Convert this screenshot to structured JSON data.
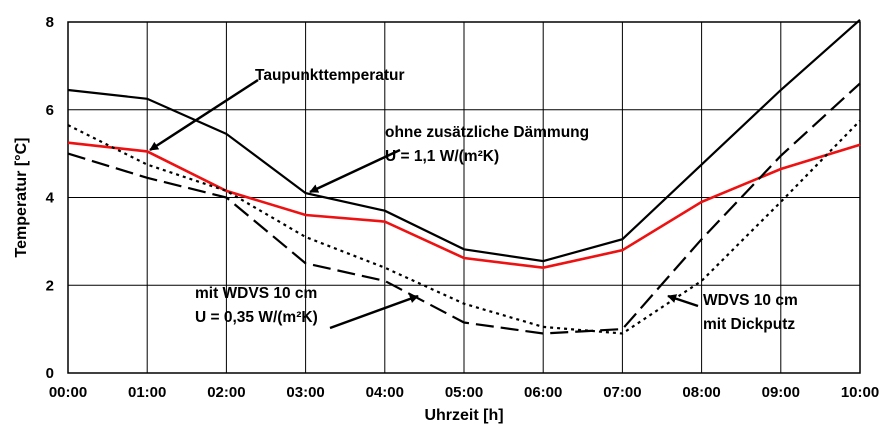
{
  "chart_data": {
    "type": "line",
    "xlabel": "Uhrzeit [h]",
    "ylabel": "Temperatur [°C]",
    "ylim": [
      0,
      8
    ],
    "yticks": [
      0,
      2,
      4,
      6,
      8
    ],
    "categories": [
      "00:00",
      "01:00",
      "02:00",
      "03:00",
      "04:00",
      "05:00",
      "06:00",
      "07:00",
      "08:00",
      "09:00",
      "10:00"
    ],
    "grid": true,
    "series": [
      {
        "name": "Taupunkttemperatur",
        "color": "#ee1111",
        "dash": "solid",
        "values": [
          5.25,
          5.05,
          4.15,
          3.6,
          3.45,
          2.62,
          2.4,
          2.8,
          3.9,
          4.65,
          5.2
        ]
      },
      {
        "name": "ohne zusätzliche Dämmung",
        "color": "#000000",
        "dash": "solid",
        "values": [
          6.45,
          6.25,
          5.45,
          4.1,
          3.7,
          2.82,
          2.55,
          3.05,
          4.75,
          6.45,
          8.05
        ]
      },
      {
        "name": "mit WDVS 10 cm",
        "color": "#000000",
        "dash": "longdash",
        "values": [
          5.0,
          4.45,
          4.0,
          2.5,
          2.1,
          1.15,
          0.9,
          1.0,
          3.05,
          4.95,
          6.6
        ]
      },
      {
        "name": "WDVS 10 cm mit Dickputz",
        "color": "#000000",
        "dash": "dotted",
        "values": [
          5.65,
          4.75,
          4.15,
          3.1,
          2.4,
          1.58,
          1.05,
          0.9,
          2.1,
          3.9,
          5.75
        ]
      }
    ],
    "annotations": [
      {
        "id": "tau",
        "lines": [
          "Taupunkttemperatur"
        ]
      },
      {
        "id": "ohne",
        "lines": [
          "ohne zusätzliche Dämmung",
          "U = 1,1 W/(m²K)"
        ]
      },
      {
        "id": "mit",
        "lines": [
          "mit WDVS 10 cm",
          "U = 0,35 W/(m²K)"
        ]
      },
      {
        "id": "dick",
        "lines": [
          "WDVS 10 cm",
          "mit Dickputz"
        ]
      }
    ]
  }
}
